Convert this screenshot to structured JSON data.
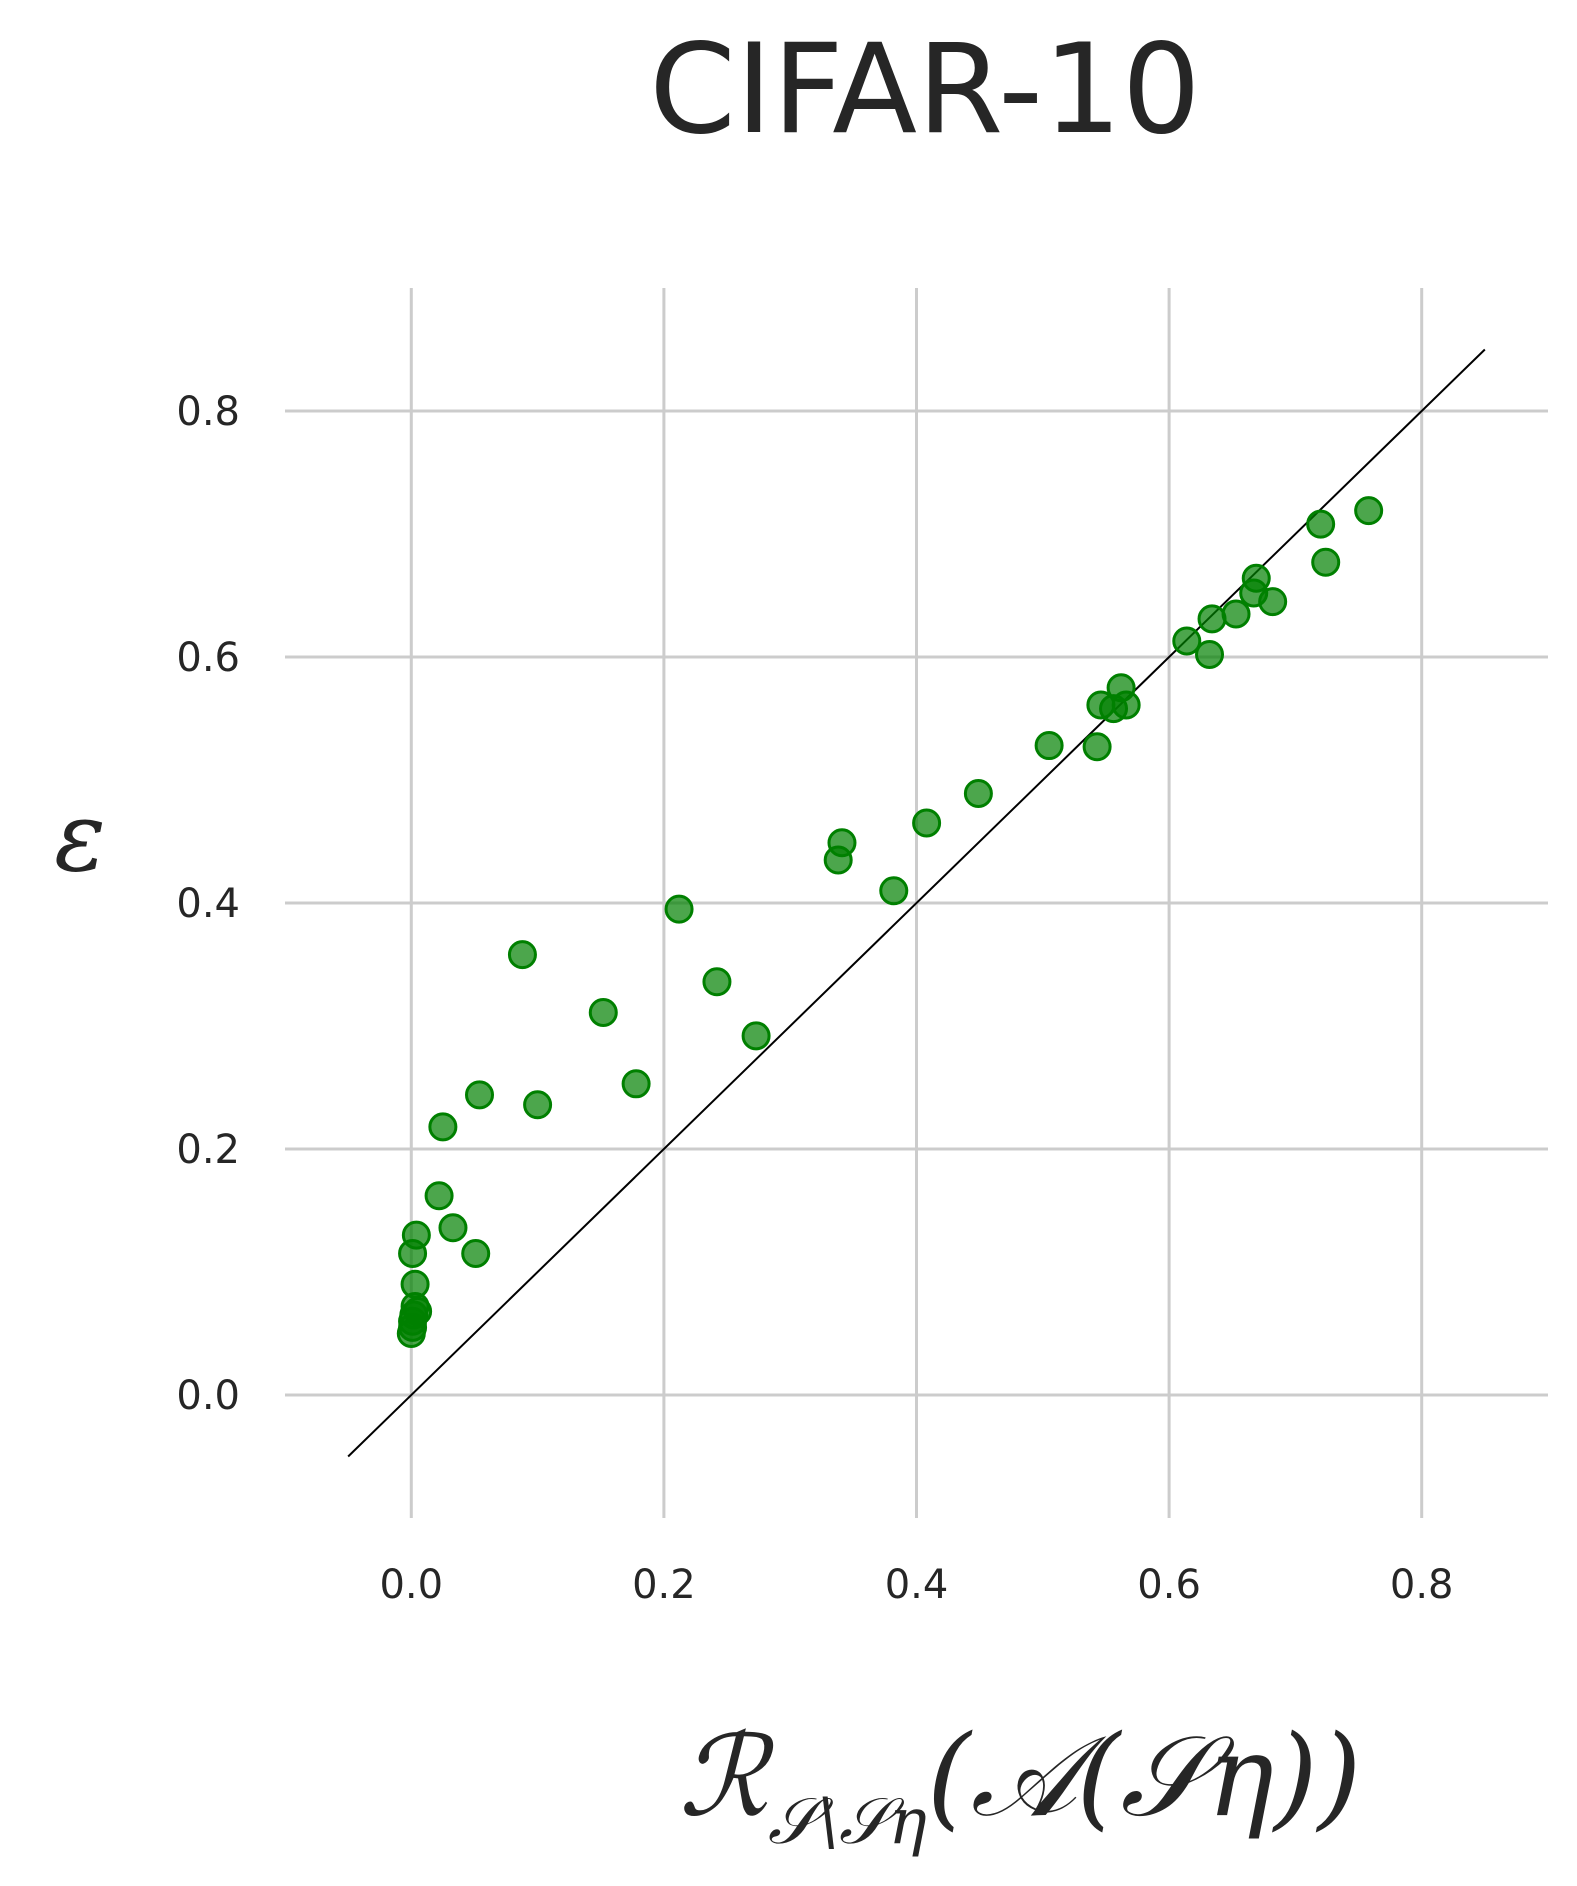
{
  "chart_data": {
    "type": "scatter",
    "title": "CIFAR-10",
    "ylabel": "ε",
    "xlabel": {
      "main": "ℛ",
      "subscript": "𝒮\\𝒮η",
      "argument": "(𝒜(𝒮η))"
    },
    "xlim": [
      -0.1,
      0.9
    ],
    "ylim": [
      -0.1,
      0.9
    ],
    "xticks": [
      0.0,
      0.2,
      0.4,
      0.6,
      0.8
    ],
    "yticks": [
      0.0,
      0.2,
      0.4,
      0.6,
      0.8
    ],
    "xtick_labels": [
      "0.0",
      "0.2",
      "0.4",
      "0.6",
      "0.8"
    ],
    "ytick_labels": [
      "0.0",
      "0.2",
      "0.4",
      "0.6",
      "0.8"
    ],
    "grid": true,
    "reference_line": {
      "from": [
        -0.05,
        -0.05
      ],
      "to": [
        0.85,
        0.85
      ],
      "color": "#000000"
    },
    "marker_color": "#008000",
    "series": [
      {
        "points": [
          [
            0.0,
            0.05
          ],
          [
            0.001,
            0.055
          ],
          [
            0.001,
            0.06
          ],
          [
            0.002,
            0.065
          ],
          [
            0.003,
            0.072
          ],
          [
            0.005,
            0.068
          ],
          [
            0.003,
            0.09
          ],
          [
            0.001,
            0.115
          ],
          [
            0.004,
            0.13
          ],
          [
            0.022,
            0.162
          ],
          [
            0.025,
            0.218
          ],
          [
            0.033,
            0.136
          ],
          [
            0.051,
            0.115
          ],
          [
            0.054,
            0.244
          ],
          [
            0.088,
            0.358
          ],
          [
            0.1,
            0.236
          ],
          [
            0.152,
            0.311
          ],
          [
            0.178,
            0.253
          ],
          [
            0.212,
            0.395
          ],
          [
            0.242,
            0.336
          ],
          [
            0.273,
            0.292
          ],
          [
            0.338,
            0.435
          ],
          [
            0.341,
            0.449
          ],
          [
            0.382,
            0.41
          ],
          [
            0.408,
            0.465
          ],
          [
            0.449,
            0.489
          ],
          [
            0.505,
            0.528
          ],
          [
            0.543,
            0.527
          ],
          [
            0.546,
            0.561
          ],
          [
            0.556,
            0.558
          ],
          [
            0.562,
            0.575
          ],
          [
            0.566,
            0.561
          ],
          [
            0.614,
            0.613
          ],
          [
            0.632,
            0.602
          ],
          [
            0.634,
            0.631
          ],
          [
            0.653,
            0.635
          ],
          [
            0.667,
            0.652
          ],
          [
            0.669,
            0.664
          ],
          [
            0.682,
            0.645
          ],
          [
            0.72,
            0.708
          ],
          [
            0.724,
            0.677
          ],
          [
            0.758,
            0.719
          ]
        ]
      }
    ]
  }
}
